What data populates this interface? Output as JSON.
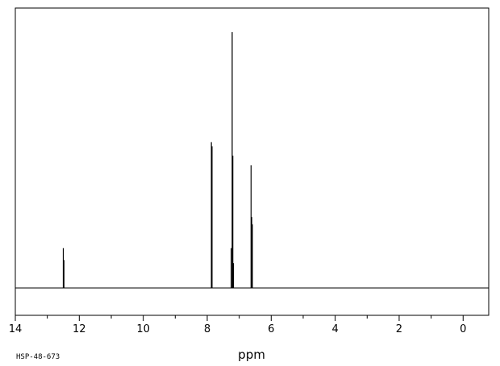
{
  "chart_data": {
    "type": "line",
    "title": "",
    "xlabel": "ppm",
    "ylabel": "",
    "xlim": [
      14,
      -0.8
    ],
    "ylim": [
      0,
      100
    ],
    "x_reversed": true,
    "grid": false,
    "x_tick_labels": [
      "14",
      "12",
      "10",
      "8",
      "6",
      "4",
      "2",
      "0"
    ],
    "x_ticks": [
      14,
      12,
      10,
      8,
      6,
      4,
      2,
      0
    ],
    "annotation": "HSP-48-673",
    "series": [
      {
        "peaks": [
          {
            "ppm": 12.5,
            "intensity": 15.6
          },
          {
            "ppm": 12.48,
            "intensity": 10.9
          },
          {
            "ppm": 7.87,
            "intensity": 57.0
          },
          {
            "ppm": 7.85,
            "intensity": 55.4
          },
          {
            "ppm": 7.25,
            "intensity": 15.6
          },
          {
            "ppm": 7.22,
            "intensity": 100.0
          },
          {
            "ppm": 7.2,
            "intensity": 51.7
          },
          {
            "ppm": 7.18,
            "intensity": 9.7
          },
          {
            "ppm": 6.63,
            "intensity": 48.0
          },
          {
            "ppm": 6.61,
            "intensity": 27.7
          },
          {
            "ppm": 6.59,
            "intensity": 24.9
          }
        ]
      }
    ],
    "colors": {
      "line": "#000000",
      "frame": "#000000",
      "background": "#ffffff"
    }
  }
}
